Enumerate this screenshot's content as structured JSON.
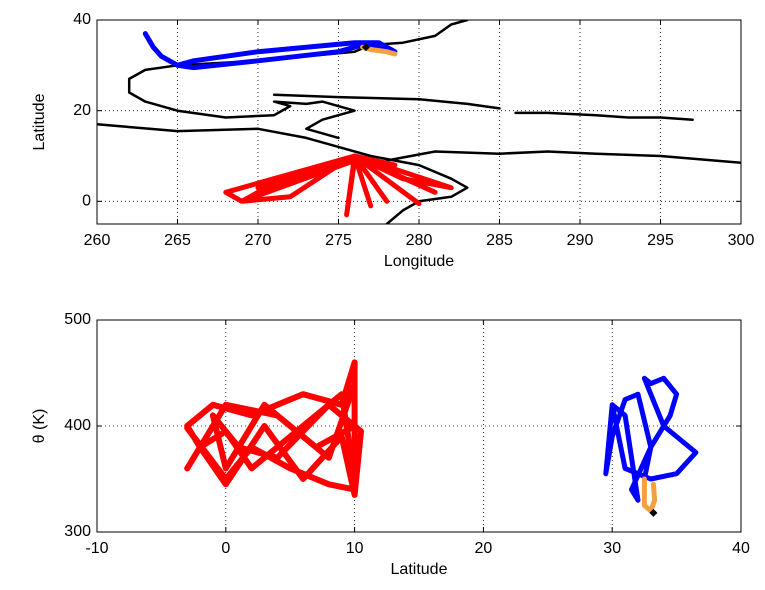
{
  "chart_data": [
    {
      "type": "line",
      "xlabel": "Longitude",
      "ylabel": "Latitude",
      "xlim": [
        260,
        300
      ],
      "ylim": [
        -5,
        40
      ],
      "xticks": [
        260,
        265,
        270,
        275,
        280,
        285,
        290,
        295,
        300
      ],
      "yticks": [
        0,
        20,
        40
      ],
      "grid": true,
      "series": [
        {
          "color": "#000000",
          "width": 2.5,
          "x": [
            283,
            282,
            281,
            279,
            277,
            276,
            270,
            265,
            263,
            262,
            262,
            263,
            265,
            268,
            271,
            272,
            271,
            273,
            274,
            276,
            274,
            273,
            275,
            null,
            260,
            265,
            270,
            273,
            275,
            277,
            280,
            282,
            283,
            282,
            280,
            279,
            278,
            null,
            271,
            275,
            280,
            283,
            285,
            null,
            278,
            281,
            285,
            288,
            291,
            295,
            300,
            null,
            286,
            288,
            291,
            293,
            295,
            297
          ],
          "values": [
            40,
            39,
            36.5,
            35,
            34.5,
            33,
            31,
            30,
            29,
            27,
            24,
            22,
            20,
            18.5,
            19,
            21,
            22,
            21.5,
            22,
            20,
            18,
            16,
            14,
            null,
            17,
            15.5,
            16,
            14,
            12,
            10,
            8,
            5,
            3,
            1,
            0,
            -2,
            -5,
            null,
            23.5,
            23,
            22.5,
            21.5,
            20.5,
            null,
            9,
            11,
            10.5,
            11,
            10.5,
            10,
            8.5,
            null,
            19.5,
            19.5,
            19,
            18.5,
            18.5,
            18
          ]
        },
        {
          "color": "#ff0000",
          "width": 5,
          "x": [
            276,
            270,
            268,
            269,
            272,
            275,
            276,
            274,
            270,
            269,
            276,
            275.5,
            276,
            277,
            276,
            278,
            276,
            280,
            276,
            281,
            276,
            282,
            279,
            276,
            278.5,
            276,
            275,
            273,
            270
          ],
          "values": [
            10,
            4,
            2,
            0,
            1,
            8,
            10,
            7,
            2,
            0,
            9,
            -3,
            10,
            -1,
            10,
            0,
            10,
            -0.5,
            10,
            2,
            10,
            3,
            5,
            10,
            8,
            10,
            9,
            6,
            3
          ]
        },
        {
          "color": "#0000ff",
          "width": 5,
          "x": [
            263,
            263.5,
            264,
            265,
            266,
            270,
            275,
            276.5,
            277.5,
            278.5,
            277.5,
            276,
            270,
            266,
            265
          ],
          "values": [
            37,
            34,
            32,
            30,
            29.5,
            31,
            33,
            34.5,
            34,
            33,
            35,
            35,
            33,
            31,
            30
          ]
        },
        {
          "color": "#f4a040",
          "width": 5,
          "x": [
            276.5,
            277,
            278,
            278.5
          ],
          "values": [
            34,
            33.5,
            33,
            32.5
          ]
        },
        {
          "color": "#000000",
          "marker": "diamond",
          "x": [
            276.7
          ],
          "values": [
            34
          ]
        }
      ]
    },
    {
      "type": "line",
      "xlabel": "Latitude",
      "ylabel": "θ (K)",
      "xlim": [
        -10,
        40
      ],
      "ylim": [
        300,
        500
      ],
      "xticks": [
        -10,
        0,
        10,
        20,
        30,
        40
      ],
      "yticks": [
        300,
        400,
        500
      ],
      "grid": true,
      "series": [
        {
          "color": "#ff0000",
          "width": 6,
          "x": [
            -3,
            0,
            2,
            5,
            8,
            10,
            10,
            9,
            6,
            2,
            -1,
            -3,
            -2,
            0,
            3,
            6,
            9,
            10,
            10.5,
            8,
            4,
            1,
            -1,
            0,
            3,
            7,
            10,
            10,
            9,
            5,
            2,
            0,
            -2,
            -3,
            0,
            4,
            8,
            10
          ],
          "values": [
            398,
            350,
            380,
            360,
            345,
            340,
            460,
            420,
            430,
            410,
            420,
            400,
            380,
            345,
            400,
            350,
            390,
            335,
            395,
            420,
            370,
            380,
            410,
            360,
            420,
            380,
            400,
            350,
            430,
            390,
            360,
            395,
            380,
            360,
            420,
            410,
            370,
            440
          ]
        },
        {
          "color": "#0000ff",
          "width": 5,
          "x": [
            30,
            31,
            33,
            35,
            36.5,
            34,
            33,
            32.5,
            33,
            34,
            35,
            34.5,
            33,
            31.5,
            32,
            31,
            30,
            29.5,
            30,
            31,
            32,
            33,
            32.5
          ],
          "values": [
            420,
            360,
            350,
            355,
            375,
            400,
            430,
            445,
            440,
            445,
            430,
            410,
            380,
            340,
            330,
            410,
            420,
            355,
            390,
            425,
            430,
            380,
            350
          ]
        },
        {
          "color": "#f4a040",
          "width": 5,
          "x": [
            32.5,
            32.5,
            33,
            33.3,
            33.2
          ],
          "values": [
            350,
            325,
            320,
            330,
            345
          ]
        },
        {
          "color": "#000000",
          "marker": "diamond",
          "x": [
            33.2
          ],
          "values": [
            318
          ]
        }
      ]
    }
  ]
}
